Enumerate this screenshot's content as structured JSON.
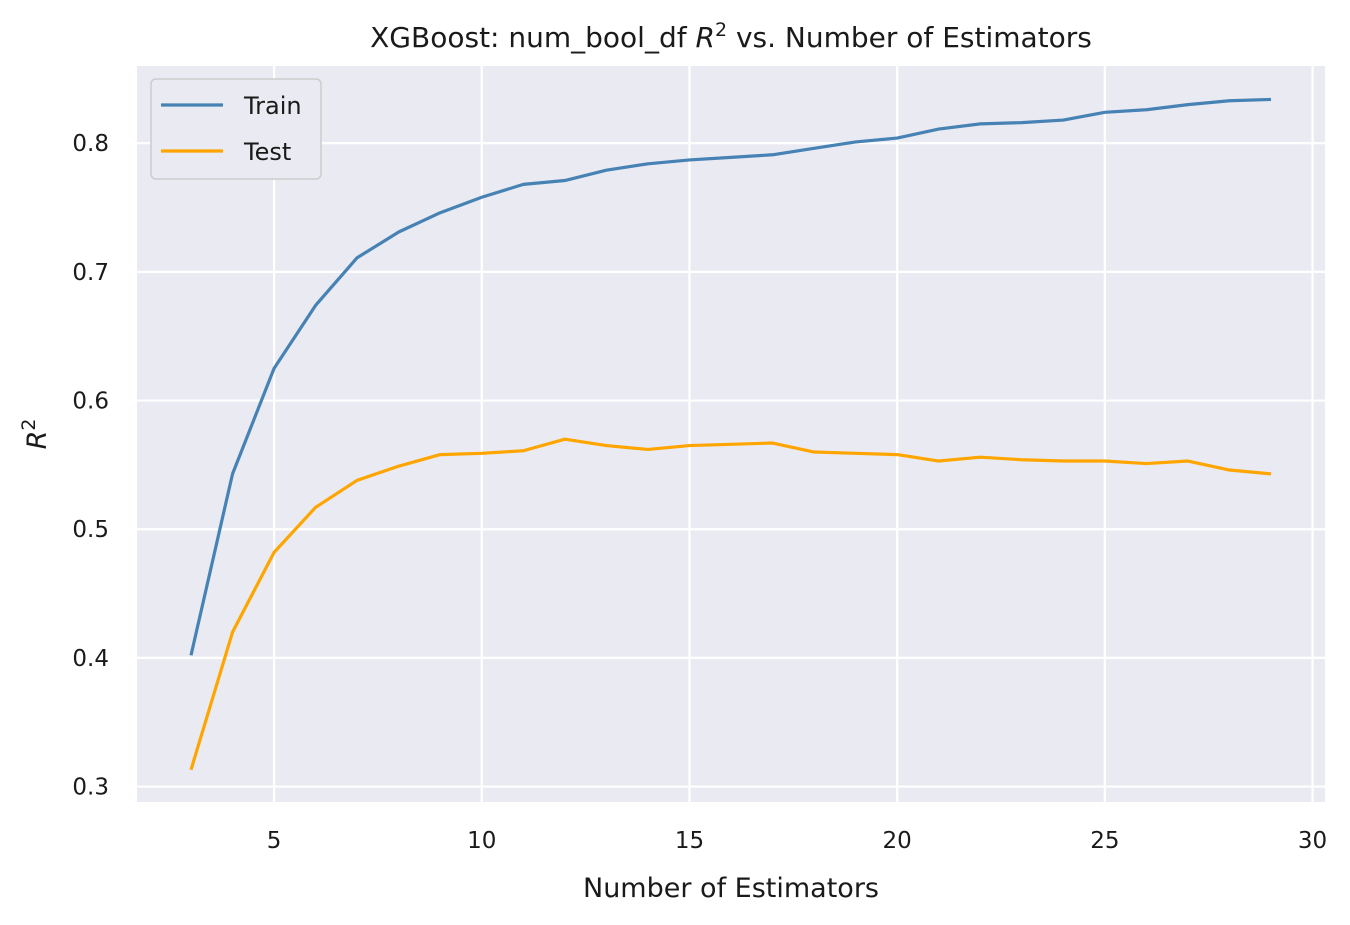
{
  "chart_data": {
    "type": "line",
    "title": "XGBoost: num_bool_df R² vs. Number of Estimators",
    "title_parts": {
      "prefix": "XGBoost: num_bool_df ",
      "var": "R",
      "sup": "2",
      "suffix": " vs. Number of Estimators"
    },
    "xlabel": "Number of Estimators",
    "ylabel_parts": {
      "var": "R",
      "sup": "2"
    },
    "xlim": [
      1.7,
      30.3
    ],
    "ylim": [
      0.288,
      0.86
    ],
    "xticks": [
      5,
      10,
      15,
      20,
      25,
      30
    ],
    "yticks": [
      0.3,
      0.4,
      0.5,
      0.6,
      0.7,
      0.8
    ],
    "ytick_labels": [
      "0.3",
      "0.4",
      "0.5",
      "0.6",
      "0.7",
      "0.8"
    ],
    "grid": true,
    "legend_position": "top-left",
    "background": "#eaeaf2",
    "x": [
      3,
      4,
      5,
      6,
      7,
      8,
      9,
      10,
      11,
      12,
      13,
      14,
      15,
      16,
      17,
      18,
      19,
      20,
      21,
      22,
      23,
      24,
      25,
      26,
      27,
      28,
      29
    ],
    "series": [
      {
        "name": "Train",
        "color": "#4682b4",
        "values": [
          0.402,
          0.543,
          0.625,
          0.674,
          0.711,
          0.731,
          0.746,
          0.758,
          0.768,
          0.771,
          0.779,
          0.784,
          0.787,
          0.789,
          0.791,
          0.796,
          0.801,
          0.804,
          0.811,
          0.815,
          0.816,
          0.818,
          0.824,
          0.826,
          0.83,
          0.833,
          0.834
        ]
      },
      {
        "name": "Test",
        "color": "#ffa500",
        "values": [
          0.313,
          0.42,
          0.482,
          0.517,
          0.538,
          0.549,
          0.558,
          0.559,
          0.561,
          0.57,
          0.565,
          0.562,
          0.565,
          0.566,
          0.567,
          0.56,
          0.559,
          0.558,
          0.553,
          0.556,
          0.554,
          0.553,
          0.553,
          0.551,
          0.553,
          0.546,
          0.543
        ]
      }
    ]
  }
}
